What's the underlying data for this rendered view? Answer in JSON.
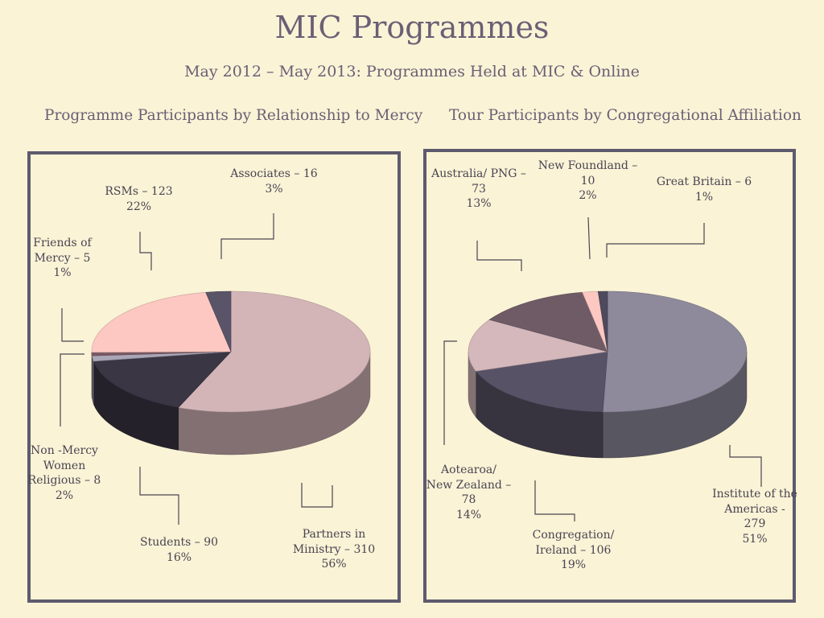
{
  "page": {
    "title": "MIC Programmes",
    "subtitle": "May 2012 – May 2013: Programmes Held at MIC & Online"
  },
  "chart_data": [
    {
      "type": "pie",
      "title": "Programme Participants by Relationship to Mercy",
      "slices": [
        {
          "label": "Partners in Ministry",
          "value": 310,
          "percent": "56%",
          "color": "#d3b5b8"
        },
        {
          "label": "Students",
          "value": 90,
          "percent": "16%",
          "color": "#3a3644"
        },
        {
          "label": "Non -Mercy Women Religious",
          "value": 8,
          "percent": "2%",
          "color": "#a9a6b8"
        },
        {
          "label": "Friends of Mercy",
          "value": 5,
          "percent": "1%",
          "color": "#7a5a64"
        },
        {
          "label": "RSMs",
          "value": 123,
          "percent": "22%",
          "color": "#fcc8c1"
        },
        {
          "label": "Associates",
          "value": 16,
          "percent": "3%",
          "color": "#5a5468"
        }
      ],
      "label_lines": [
        [
          "Partners in",
          "Ministry – 310",
          "56%"
        ],
        [
          "Students – 90",
          "16%"
        ],
        [
          "Non -Mercy",
          "Women",
          "Religious – 8",
          "2%"
        ],
        [
          "Friends of",
          "Mercy – 5",
          "1%"
        ],
        [
          "RSMs – 123",
          "22%"
        ],
        [
          "Associates – 16",
          "3%"
        ]
      ]
    },
    {
      "type": "pie",
      "title": "Tour Participants by Congregational Affiliation",
      "slices": [
        {
          "label": "Institute of the Americas",
          "value": 279,
          "percent": "51%",
          "color": "#8e8a9c"
        },
        {
          "label": "Congregation/ Ireland",
          "value": 106,
          "percent": "19%",
          "color": "#585266"
        },
        {
          "label": "Aotearoa/ New Zealand",
          "value": 78,
          "percent": "14%",
          "color": "#d4b8bb"
        },
        {
          "label": "Australia/ PNG",
          "value": 73,
          "percent": "13%",
          "color": "#6e5b66"
        },
        {
          "label": "New Foundland",
          "value": 10,
          "percent": "2%",
          "color": "#fcc8c1"
        },
        {
          "label": "Great Britain",
          "value": 6,
          "percent": "1%",
          "color": "#4e4a5e"
        }
      ],
      "label_lines": [
        [
          "Institute of the",
          "Americas -",
          "279",
          "51%"
        ],
        [
          "Congregation/",
          "Ireland – 106",
          "19%"
        ],
        [
          "Aotearoa/",
          "New Zealand –",
          "78",
          "14%"
        ],
        [
          "Australia/ PNG –",
          "73",
          "13%"
        ],
        [
          "New Foundland –",
          "10",
          "2%"
        ],
        [
          "Great Britain – 6",
          "1%"
        ]
      ]
    }
  ]
}
